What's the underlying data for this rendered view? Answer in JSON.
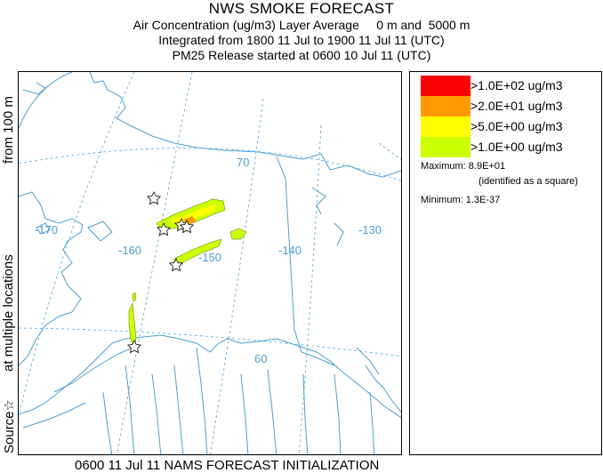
{
  "header": {
    "title": "NWS SMOKE FORECAST",
    "line1": "Air Concentration (ug/m3) Layer Average     0 m and  5000 m",
    "line2": "Integrated from 1800 11 Jul to 1900 11 Jul 11 (UTC)",
    "line3": "PM25 Release started at 0600 10 Jul 11 (UTC)"
  },
  "side_label": {
    "source": "Source",
    "location": "at multiple locations",
    "height": "from    100 m",
    "source_icon": "star-icon"
  },
  "map": {
    "lat_labels": [
      "70",
      "60"
    ],
    "lon_labels": [
      "-170",
      "-160",
      "-150",
      "-140",
      "-130"
    ],
    "colors": {
      "coast": "#4a9fd0",
      "grid": "#5aa8d8"
    }
  },
  "legend": {
    "entries": [
      {
        "label": ">1.0E+02 ug/m3",
        "color": "#ff0000"
      },
      {
        "label": ">2.0E+01 ug/m3",
        "color": "#ff9900"
      },
      {
        "label": ">5.0E+00 ug/m3",
        "color": "#ffff00"
      },
      {
        "label": ">1.0E+00 ug/m3",
        "color": "#ccff00"
      }
    ],
    "maximum": "Maximum: 8.9E+01",
    "maximum_note": "(identified as a square)",
    "minimum": "Minimum: 1.3E-37"
  },
  "footer": "0600 11 Jul 11 NAMS FORECAST INITIALIZATION"
}
